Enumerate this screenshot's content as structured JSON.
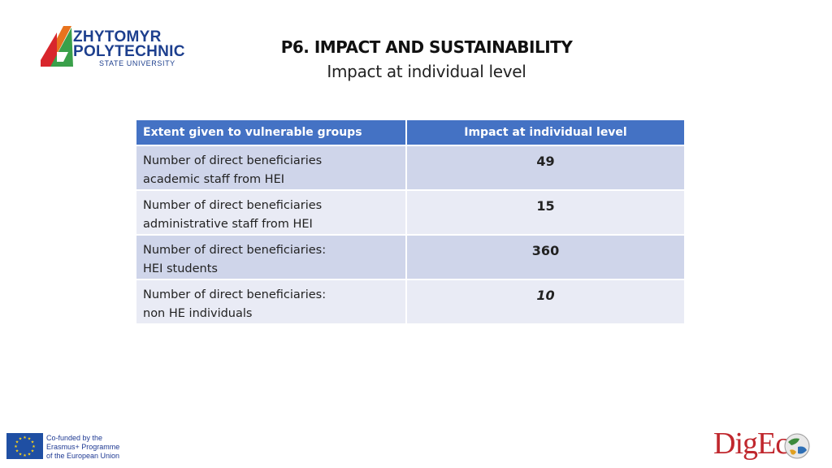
{
  "logo": {
    "line1": "ZHYTOMYR",
    "line2": "POLYTECHNIC",
    "line3": "STATE UNIVERSITY"
  },
  "header": {
    "title": "P6. IMPACT AND SUSTAINABILITY",
    "subtitle": "Impact at individual level"
  },
  "table": {
    "headers": [
      "Extent given to vulnerable groups",
      "Impact at individual level"
    ],
    "rows": [
      {
        "line1": "Number of direct beneficiaries",
        "line2": "academic staff from HEI",
        "value": "49"
      },
      {
        "line1": "Number of direct beneficiaries",
        "line2": "administrative staff from HEI",
        "value": "15"
      },
      {
        "line1": "Number of direct beneficiaries:",
        "line2": "HEI students",
        "value": "360"
      },
      {
        "line1": "Number of direct beneficiaries:",
        "line2": "non HE individuals",
        "value": "10"
      }
    ]
  },
  "footer": {
    "erasmus_line1": "Co-funded by the",
    "erasmus_line2": "Erasmus+ Programme",
    "erasmus_line3": "of the European Union",
    "digeco_label": "DigEco"
  },
  "colors": {
    "header_bg": "#4472c4",
    "row_dark": "#cfd5ea",
    "row_light": "#e9ebf5",
    "digeco_red": "#c0272d"
  }
}
